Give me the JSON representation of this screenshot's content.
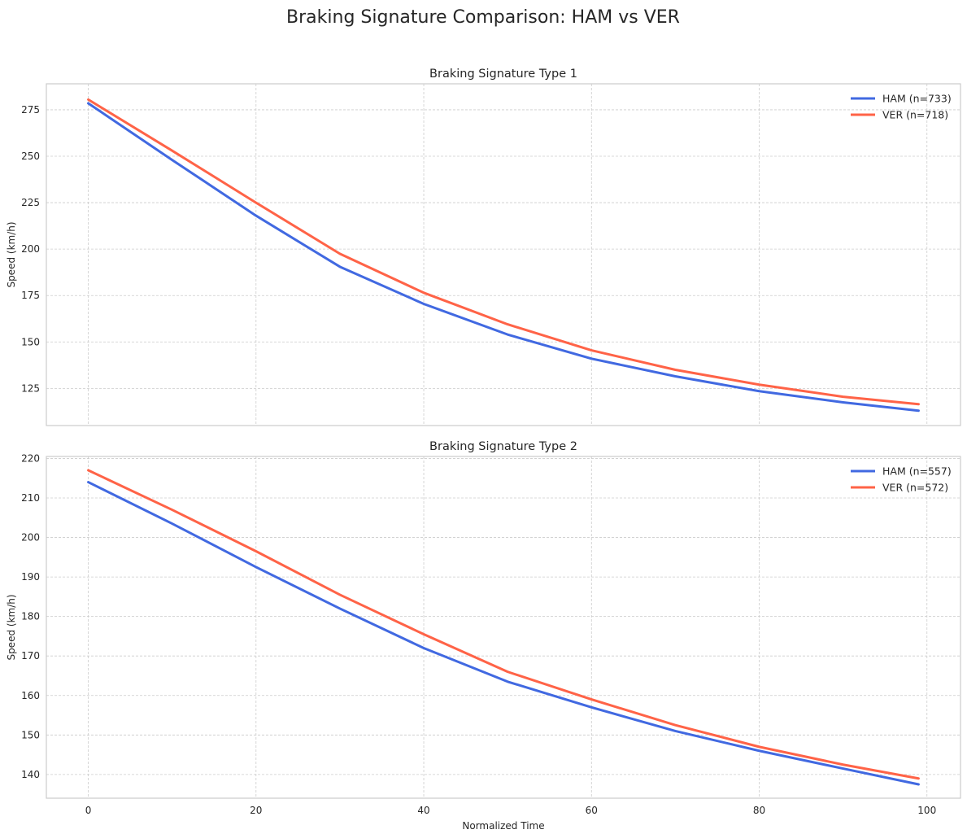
{
  "figure": {
    "title": "Braking Signature Comparison: HAM vs VER",
    "colors": {
      "HAM": "#4169e1",
      "VER": "#ff6347"
    }
  },
  "chart_data": [
    {
      "type": "line",
      "title": "Braking Signature Type 1",
      "xlabel": "",
      "ylabel": "Speed (km/h)",
      "xlim": [
        -5,
        104
      ],
      "ylim": [
        105,
        289
      ],
      "xticks": [
        0,
        20,
        40,
        60,
        80,
        100
      ],
      "yticks": [
        125,
        150,
        175,
        200,
        225,
        250,
        275
      ],
      "show_xtick_labels": false,
      "grid": true,
      "legend": "top-right",
      "x": [
        0,
        10,
        20,
        30,
        40,
        50,
        60,
        70,
        80,
        90,
        99
      ],
      "series": [
        {
          "name": "HAM (n=733)",
          "key": "HAM",
          "values": [
            278.5,
            248.0,
            218.0,
            190.5,
            170.5,
            154.0,
            141.0,
            131.5,
            123.5,
            117.5,
            113.0
          ]
        },
        {
          "name": "VER (n=718)",
          "key": "VER",
          "values": [
            280.5,
            253.0,
            225.0,
            197.5,
            176.5,
            159.5,
            145.5,
            135.0,
            127.0,
            120.5,
            116.5
          ]
        }
      ]
    },
    {
      "type": "line",
      "title": "Braking Signature Type 2",
      "xlabel": "Normalized Time",
      "ylabel": "Speed (km/h)",
      "xlim": [
        -5,
        104
      ],
      "ylim": [
        134,
        220.5
      ],
      "xticks": [
        0,
        20,
        40,
        60,
        80,
        100
      ],
      "yticks": [
        140,
        150,
        160,
        170,
        180,
        190,
        200,
        210,
        220
      ],
      "show_xtick_labels": true,
      "grid": true,
      "legend": "top-right",
      "x": [
        0,
        10,
        20,
        30,
        40,
        50,
        60,
        70,
        80,
        90,
        99
      ],
      "series": [
        {
          "name": "HAM (n=557)",
          "key": "HAM",
          "values": [
            214.0,
            203.5,
            192.5,
            182.0,
            172.0,
            163.5,
            157.0,
            151.0,
            146.0,
            141.5,
            137.5
          ]
        },
        {
          "name": "VER (n=572)",
          "key": "VER",
          "values": [
            217.0,
            207.0,
            196.5,
            185.5,
            175.5,
            166.0,
            159.0,
            152.5,
            147.0,
            142.5,
            139.0
          ]
        }
      ]
    }
  ]
}
